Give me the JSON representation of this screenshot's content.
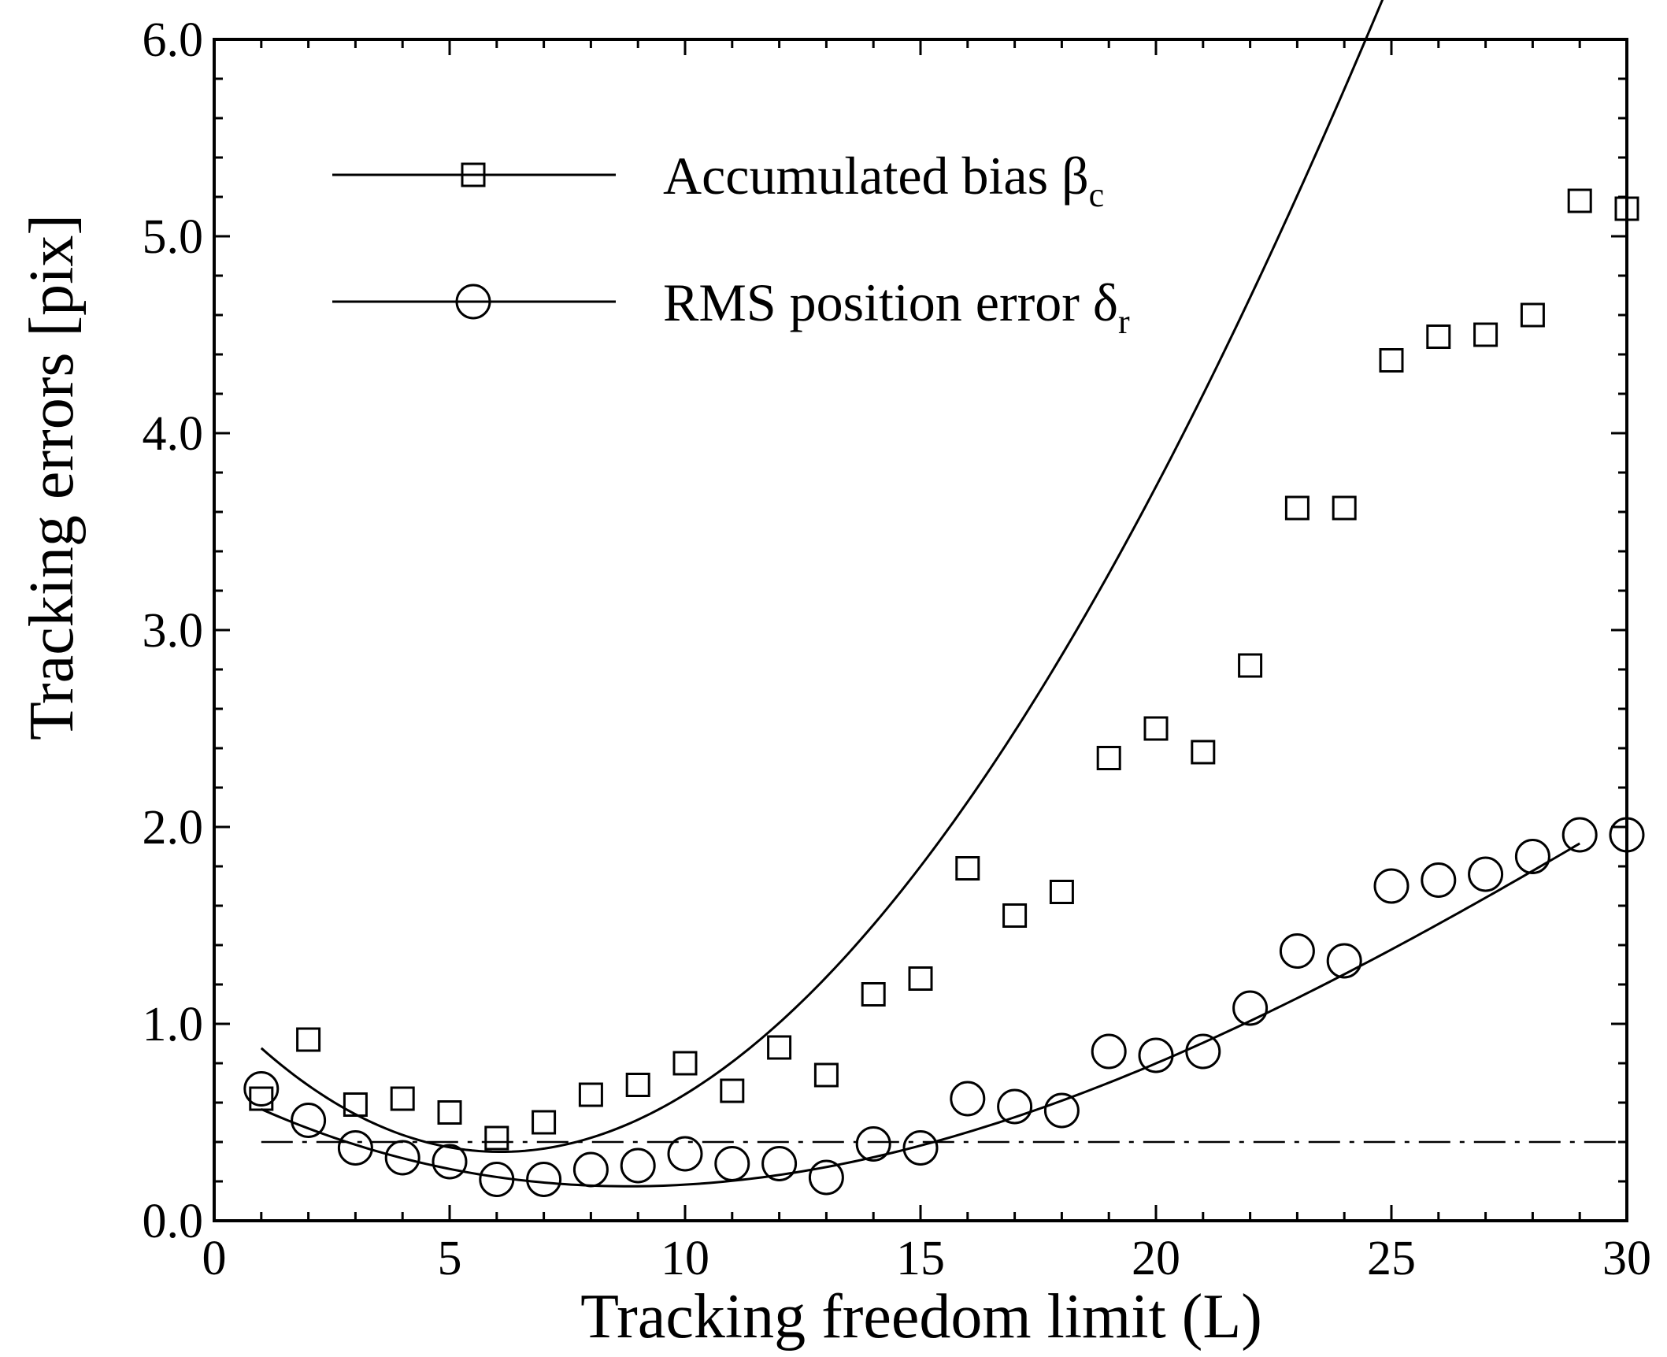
{
  "chart_data": {
    "type": "scatter",
    "xlabel": "Tracking freedom limit (L)",
    "ylabel": "Tracking errors  [pix]",
    "xlim": [
      0,
      30
    ],
    "ylim": [
      0,
      6.0
    ],
    "xticks": [
      0,
      5,
      10,
      15,
      20,
      25,
      30
    ],
    "xtick_labels": [
      "0",
      "5",
      "10",
      "15",
      "20",
      "25",
      "30"
    ],
    "yticks": [
      0,
      1,
      2,
      3,
      4,
      5,
      6
    ],
    "ytick_labels": [
      "0.0",
      "1.0",
      "2.0",
      "3.0",
      "4.0",
      "5.0",
      "6.0"
    ],
    "grid": false,
    "legend_position": "top-left",
    "reference_line": {
      "y": 0.4,
      "style": "dash-dot"
    },
    "series": [
      {
        "name": "Accumulated bias ",
        "name_symbol": "β",
        "name_sub": "c",
        "marker": "square",
        "x": [
          1,
          2,
          3,
          4,
          5,
          6,
          7,
          8,
          9,
          10,
          11,
          12,
          13,
          14,
          15,
          16,
          17,
          18,
          19,
          20,
          21,
          22,
          23,
          24,
          25,
          26,
          27,
          28,
          29,
          30
        ],
        "y": [
          0.62,
          0.92,
          0.59,
          0.62,
          0.55,
          0.42,
          0.5,
          0.64,
          0.69,
          0.8,
          0.66,
          0.88,
          0.74,
          1.15,
          1.23,
          1.79,
          1.55,
          1.67,
          2.35,
          2.5,
          2.38,
          2.82,
          3.62,
          3.62,
          4.37,
          4.49,
          4.5,
          4.6,
          5.18,
          5.14
        ],
        "fit": {
          "x_range": [
            1,
            29
          ],
          "coefficients": [
            1.1105,
            -0.2561,
            0.0225,
            -0.0001575
          ]
        }
      },
      {
        "name": "RMS position error ",
        "name_symbol": "δ",
        "name_sub": "r",
        "marker": "circle",
        "x": [
          1,
          2,
          3,
          4,
          5,
          6,
          7,
          8,
          9,
          10,
          11,
          12,
          13,
          14,
          15,
          16,
          17,
          18,
          19,
          20,
          21,
          22,
          23,
          24,
          25,
          26,
          27,
          28,
          29,
          30
        ],
        "y": [
          0.67,
          0.51,
          0.37,
          0.32,
          0.3,
          0.21,
          0.21,
          0.26,
          0.28,
          0.34,
          0.29,
          0.29,
          0.22,
          0.39,
          0.37,
          0.62,
          0.58,
          0.56,
          0.86,
          0.84,
          0.86,
          1.08,
          1.37,
          1.32,
          1.7,
          1.73,
          1.76,
          1.85,
          1.96,
          1.96
        ],
        "fit": {
          "x_range": [
            1,
            29
          ],
          "coefficients": [
            0.6797,
            -0.1209,
            0.00791,
            -7.83e-05
          ]
        }
      }
    ]
  }
}
